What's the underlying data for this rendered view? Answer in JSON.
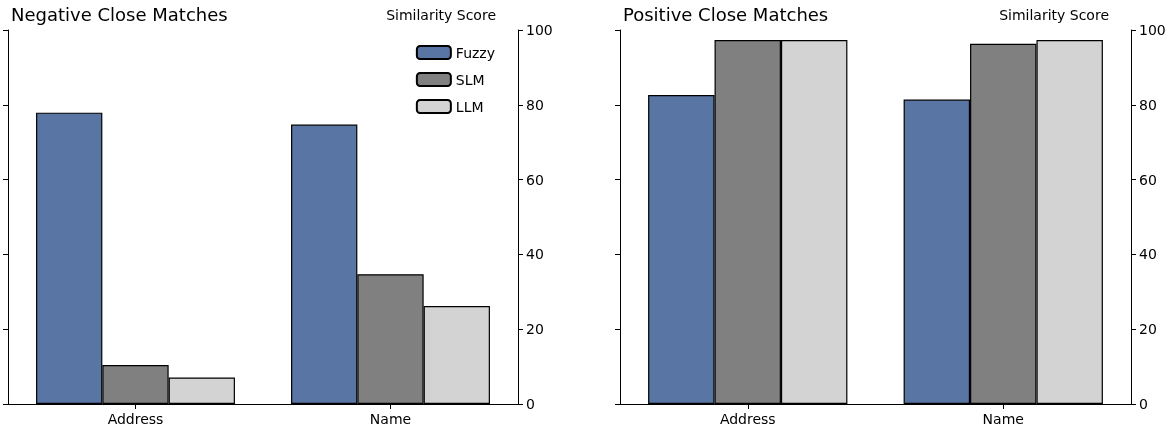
{
  "chart_data": [
    {
      "type": "bar",
      "title": "Negative Close Matches",
      "ylabel": "Similarity Score",
      "categories": [
        "Address",
        "Name"
      ],
      "series": [
        {
          "name": "Fuzzy",
          "color": "#5875a4",
          "values": [
            77.9,
            74.7
          ]
        },
        {
          "name": "SLM",
          "color": "#808080",
          "values": [
            10.4,
            34.7
          ]
        },
        {
          "name": "LLM",
          "color": "#d3d3d3",
          "values": [
            7.1,
            26.2
          ]
        }
      ],
      "ylim": [
        0,
        100
      ],
      "yticks": [
        0,
        20,
        40,
        60,
        80,
        100
      ],
      "grid": false,
      "legend": "top right"
    },
    {
      "type": "bar",
      "title": "Positive Close Matches",
      "ylabel": "Similarity Score",
      "categories": [
        "Address",
        "Name"
      ],
      "series": [
        {
          "color": "#5875a4",
          "values": [
            82.6,
            81.4
          ]
        },
        {
          "color": "#808080",
          "values": [
            97.3,
            96.3
          ]
        },
        {
          "color": "#d3d3d3",
          "values": [
            97.3,
            97.3
          ]
        }
      ],
      "ylim": [
        0,
        100
      ],
      "yticks": [
        0,
        20,
        40,
        60,
        80,
        100
      ],
      "grid": false
    }
  ]
}
